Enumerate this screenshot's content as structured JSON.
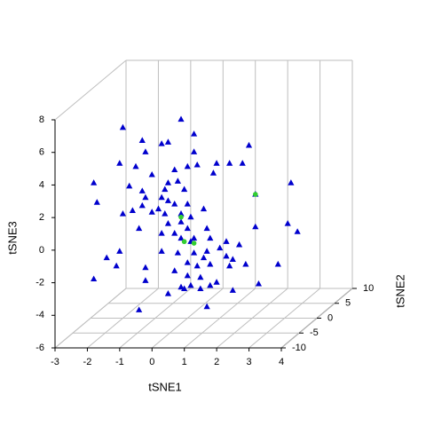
{
  "chart_data": {
    "type": "scatter3d",
    "xlabel": "tSNE1",
    "ylabel": "tSNE2",
    "zlabel": "tSNE3",
    "xlim": [
      -3,
      4
    ],
    "ylim": [
      -10,
      10
    ],
    "zlim": [
      -6,
      8
    ],
    "xticks": [
      -3,
      -2,
      -1,
      0,
      1,
      2,
      3,
      4
    ],
    "yticks": [
      -10,
      -5,
      0,
      5,
      10
    ],
    "zticks": [
      -6,
      -4,
      -2,
      0,
      2,
      4,
      6,
      8
    ],
    "grid": true,
    "series": [
      {
        "color": "#0000cd",
        "marker": "triangle",
        "x": [
          -2.0,
          -0.2,
          0.2,
          -1.4,
          -0.8,
          -0.6,
          -1.3,
          0.2,
          1.9,
          1.3,
          -2.1,
          -0.4,
          -1.6,
          0.0,
          0.3,
          0.9,
          1.7,
          -1.1,
          -2.9,
          -0.6,
          -0.3,
          -0.1,
          -1.8,
          -1.4,
          -0.7,
          0.8,
          3.2,
          -2.8,
          -1.3,
          -0.8,
          -0.6,
          -0.4,
          -0.9,
          -1.7,
          -1.4,
          -2.0,
          0.0,
          0.5,
          2.1,
          -0.2,
          -0.7,
          -1.1,
          0.1,
          -0.2,
          -1.5,
          -0.6,
          -0.8,
          -0.4,
          0.0,
          0.2,
          0.6,
          0.7,
          2.1,
          3.1,
          3.4,
          -0.2,
          0.1,
          1.2,
          1.6,
          -2.1,
          -2.5,
          -0.8,
          -0.3,
          0.2,
          0.6,
          1.0,
          1.2,
          1.4,
          0.5,
          0.0,
          0.3,
          0.7,
          1.3,
          1.8,
          2.8,
          -2.2,
          -1.3,
          -1.3,
          -0.4,
          0.0,
          0.4,
          0.9,
          1.4,
          2.2,
          -2.9,
          -0.2,
          0.1,
          0.7,
          0.4,
          -0.6,
          -0.1,
          0.6,
          -1.5
        ],
        "y": [
          0,
          0,
          0,
          0,
          0,
          0,
          0,
          0,
          0,
          0,
          0,
          0,
          0,
          0,
          0,
          0,
          0,
          0,
          0,
          0,
          0,
          0,
          0,
          0,
          0,
          0,
          0,
          0,
          0,
          0,
          0,
          0,
          0,
          0,
          0,
          0,
          0,
          0,
          0,
          0,
          0,
          0,
          0,
          0,
          0,
          0,
          0,
          0,
          0,
          0,
          0,
          0,
          0,
          0,
          0,
          0,
          0,
          0,
          0,
          0,
          0,
          0,
          0,
          0,
          0,
          0,
          0,
          0,
          0,
          0,
          0,
          0,
          0,
          0,
          0,
          0,
          0,
          0,
          0,
          0,
          0,
          0,
          0,
          0,
          0,
          0,
          0,
          0,
          0,
          0,
          0,
          0,
          0
        ],
        "z": [
          5.7,
          6.2,
          5.3,
          4.9,
          4.7,
          4.8,
          4.2,
          4.2,
          4.6,
          3.5,
          3.5,
          3.1,
          3.3,
          3.3,
          3.4,
          3.5,
          3.5,
          2.8,
          2.3,
          2.3,
          2.4,
          1.9,
          2.1,
          1.8,
          1.9,
          2.9,
          2.3,
          1.1,
          1.4,
          1.4,
          1.2,
          1.0,
          0.7,
          0.6,
          0.9,
          0.4,
          1.0,
          0.7,
          1.6,
          0.4,
          0.4,
          0.5,
          0.2,
          -0.1,
          -0.5,
          -0.2,
          -0.8,
          -0.8,
          -0.5,
          -1.1,
          -0.5,
          -1.1,
          -0.4,
          -0.2,
          -0.7,
          -1.1,
          -1.3,
          -1.3,
          -1.5,
          -1.9,
          -2.3,
          -1.9,
          -2.0,
          -2.0,
          -1.9,
          -1.7,
          -2.2,
          -2.4,
          -2.3,
          -2.6,
          -2.8,
          -2.7,
          -2.8,
          -2.7,
          -2.7,
          -2.8,
          -2.9,
          -3.7,
          -3.1,
          -3.4,
          -3.5,
          -3.8,
          -4.3,
          -3.9,
          -3.6,
          -4.1,
          -4.0,
          -4.0,
          -4.2,
          -4.5,
          -4.2,
          -5.3,
          -5.5
        ]
      },
      {
        "color": "#32cd32",
        "marker": "circle",
        "x": [
          -0.2,
          0.2,
          2.1,
          -0.1
        ],
        "y": [
          0,
          0,
          0,
          0
        ],
        "z": [
          0.2,
          -1.4,
          1.6,
          -1.3
        ]
      }
    ]
  }
}
